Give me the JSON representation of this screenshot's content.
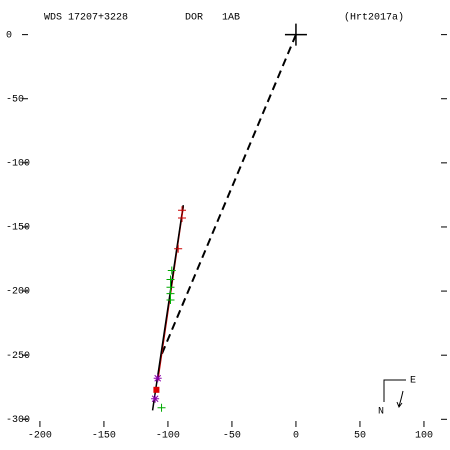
{
  "chart_data": {
    "type": "scatter",
    "title": "WDS 17207+3228",
    "discoverer": "DOR",
    "components": "1AB",
    "reference": "(Hrt2017a)",
    "compass": {
      "east": "E",
      "north": "N"
    },
    "xlim": [
      -214,
      118
    ],
    "ylim": [
      -306,
      27
    ],
    "xticks": [
      -200,
      -150,
      -100,
      -50,
      0,
      50,
      100
    ],
    "yticks": [
      0,
      -50,
      -100,
      -150,
      -200,
      -250,
      -300
    ],
    "series": [
      {
        "marker": "dashed-line",
        "color": "#000000",
        "x": [
          0,
          -106
        ],
        "values": [
          0,
          -252
        ]
      },
      {
        "marker": "solid-line",
        "color": "#cc0000",
        "x": [
          -88,
          -108
        ],
        "values": [
          -134,
          -270
        ]
      },
      {
        "marker": "solid-line",
        "color": "#000000",
        "x": [
          -88,
          -112
        ],
        "values": [
          -133,
          -293
        ]
      },
      {
        "marker": "big-plus",
        "color": "#000000",
        "x": [
          0
        ],
        "values": [
          0
        ]
      },
      {
        "marker": "plus",
        "color": "#00aa00",
        "x": [
          -97,
          -98,
          -98,
          -98,
          -98,
          -105
        ],
        "values": [
          -184,
          -191,
          -197,
          -202,
          -207,
          -291
        ]
      },
      {
        "marker": "plus",
        "color": "#cc0000",
        "x": [
          -89,
          -89,
          -92
        ],
        "values": [
          -137,
          -143,
          -167
        ]
      },
      {
        "marker": "star",
        "color": "#8800aa",
        "x": [
          -108,
          -110
        ],
        "values": [
          -268,
          -284
        ]
      },
      {
        "marker": "square",
        "color": "#dd0000",
        "x": [
          -109
        ],
        "values": [
          -277
        ]
      }
    ]
  }
}
